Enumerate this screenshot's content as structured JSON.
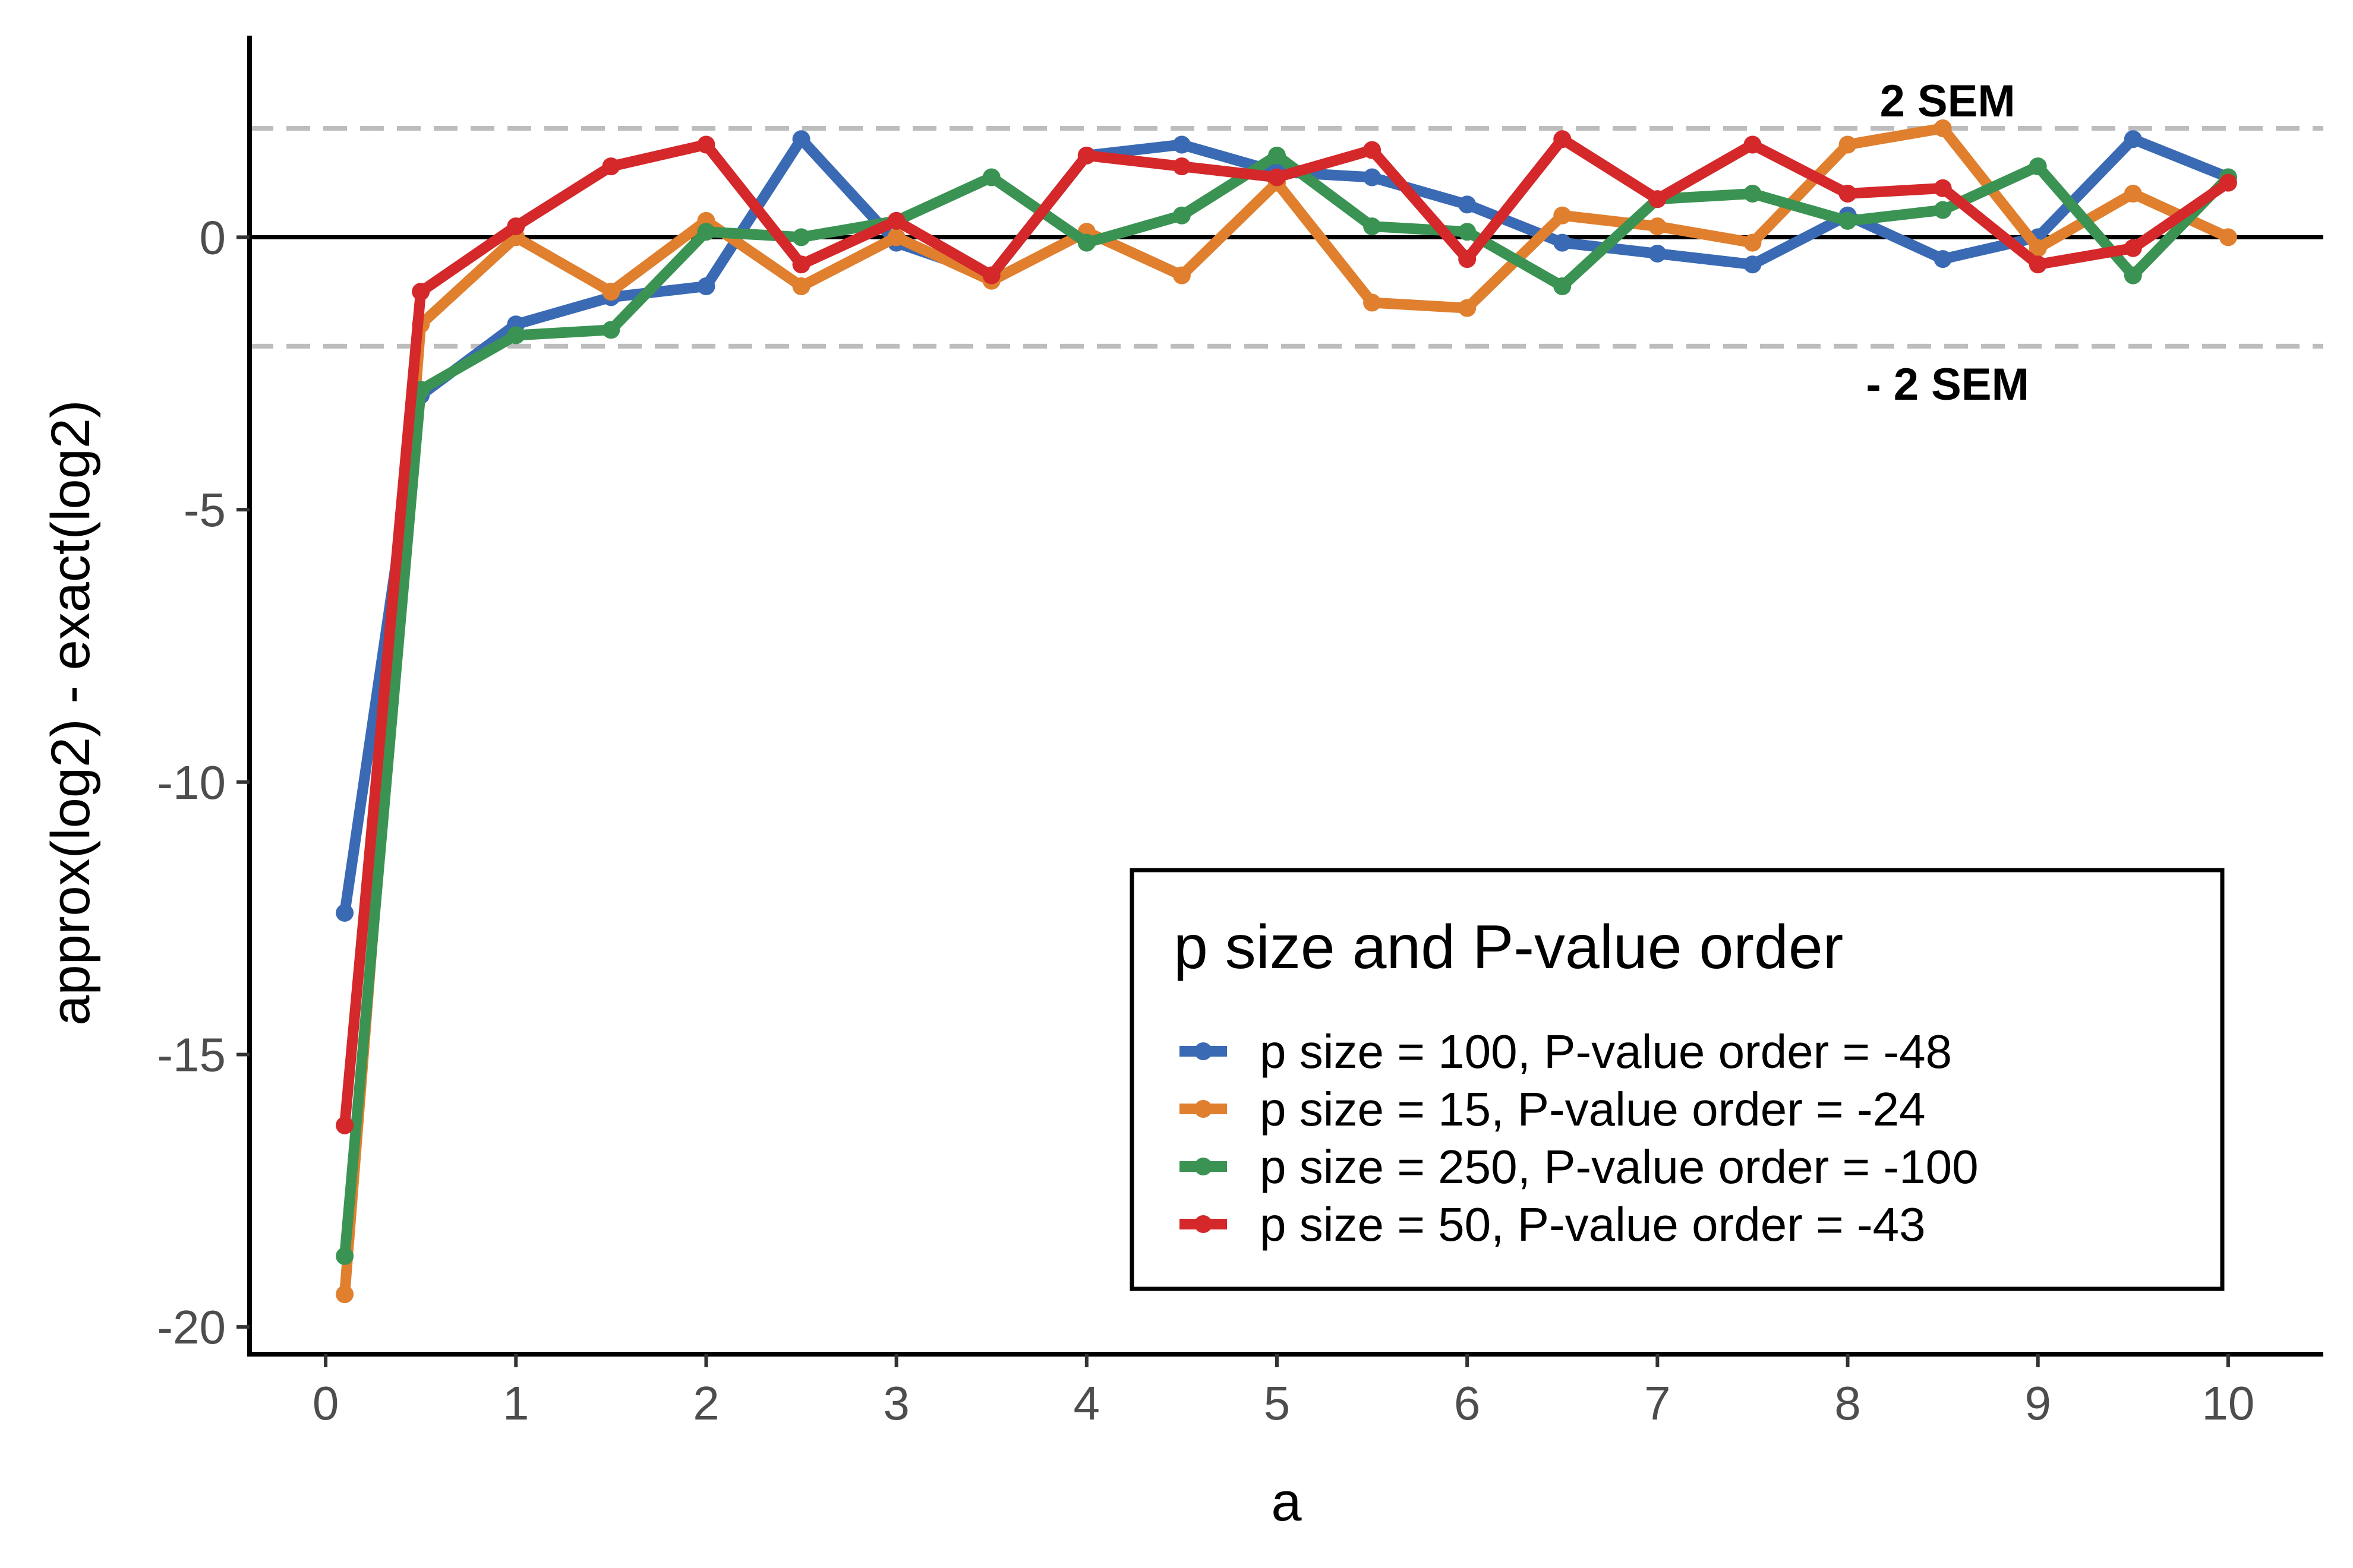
{
  "chart_data": {
    "type": "line",
    "xlabel": "a",
    "ylabel": "approx(log2) - exact(log2)",
    "xlim": [
      -0.4,
      10.5
    ],
    "ylim": [
      -20.5,
      3.7
    ],
    "xticks": [
      0,
      1,
      2,
      3,
      4,
      5,
      6,
      7,
      8,
      9,
      10
    ],
    "yticks": [
      -20,
      -15,
      -10,
      -5,
      0
    ],
    "ytick_labels": [
      "-20",
      "-15",
      "-10",
      "-5",
      "0"
    ],
    "xtick_labels": [
      "0",
      "1",
      "2",
      "3",
      "4",
      "5",
      "6",
      "7",
      "8",
      "9",
      "10"
    ],
    "x": [
      0.1,
      0.5,
      1,
      1.5,
      2,
      2.5,
      3,
      3.5,
      4,
      4.5,
      5,
      5.5,
      6,
      6.5,
      7,
      7.5,
      8,
      8.5,
      9,
      9.5,
      10
    ],
    "series": [
      {
        "name": "p size = 100, P-value order = -48",
        "color": "#3a6ab4",
        "values": [
          -12.4,
          -2.9,
          -1.6,
          -1.1,
          -0.9,
          1.8,
          -0.1,
          -0.7,
          1.5,
          1.7,
          1.2,
          1.1,
          0.6,
          -0.1,
          -0.3,
          -0.5,
          0.4,
          -0.4,
          0.0,
          1.8,
          1.1
        ]
      },
      {
        "name": "p size = 15, P-value order = -24",
        "color": "#e07f2e",
        "values": [
          -19.4,
          -1.6,
          0.0,
          -1.0,
          0.3,
          -0.9,
          0.0,
          -0.8,
          0.1,
          -0.7,
          1.0,
          -1.2,
          -1.3,
          0.4,
          0.2,
          -0.1,
          1.7,
          2.0,
          -0.2,
          0.8,
          0.0
        ]
      },
      {
        "name": "p size = 250, P-value order = -100",
        "color": "#3b9353",
        "values": [
          -18.7,
          -2.8,
          -1.8,
          -1.7,
          0.1,
          0.0,
          0.3,
          1.1,
          -0.1,
          0.4,
          1.5,
          0.2,
          0.1,
          -0.9,
          0.7,
          0.8,
          0.3,
          0.5,
          1.3,
          -0.7,
          1.1
        ]
      },
      {
        "name": "p size = 50, P-value order = -43",
        "color": "#d4282a",
        "values": [
          -16.3,
          -1.0,
          0.2,
          1.3,
          1.7,
          -0.5,
          0.3,
          -0.7,
          1.5,
          1.3,
          1.1,
          1.6,
          -0.4,
          1.8,
          0.7,
          1.7,
          0.8,
          0.9,
          -0.5,
          -0.2,
          1.0
        ]
      }
    ],
    "reference_lines": [
      {
        "y": 0,
        "style": "solid",
        "color": "#000000"
      },
      {
        "y": 2,
        "style": "dashed",
        "color": "#bdbdbd",
        "label": "2 SEM"
      },
      {
        "y": -2,
        "style": "dashed",
        "color": "#bdbdbd",
        "label": "- 2 SEM"
      }
    ],
    "annotations": [
      {
        "text": "2 SEM",
        "x": 8.5,
        "y": 2.5
      },
      {
        "text": "- 2 SEM",
        "x": 8.5,
        "y": -2.7
      }
    ],
    "legend": {
      "title": "p size and P-value order",
      "position": "bottom-right"
    }
  }
}
